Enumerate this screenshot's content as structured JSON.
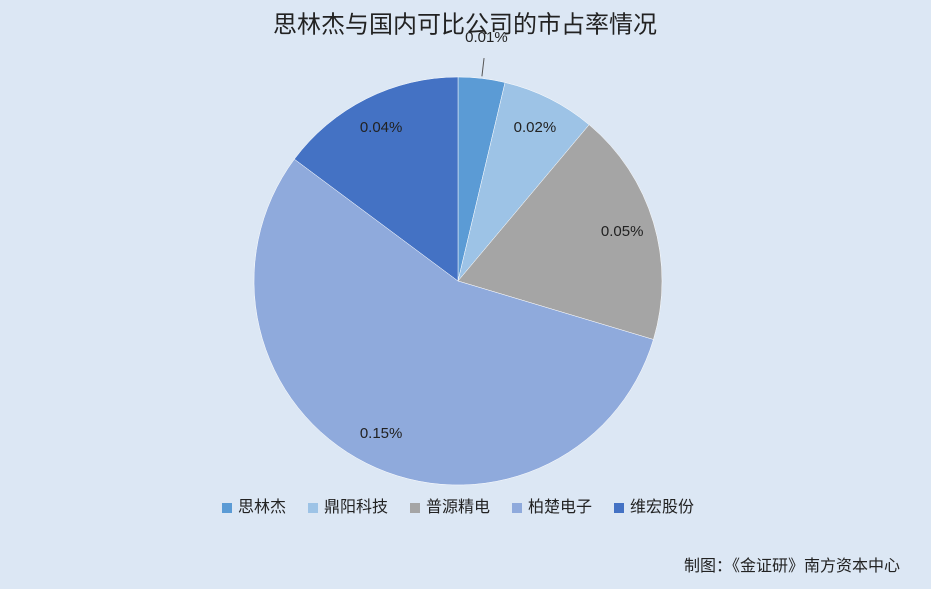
{
  "chart_data": {
    "type": "pie",
    "title": "思林杰与国内可比公司的市占率情况",
    "categories": [
      "思林杰",
      "鼎阳科技",
      "普源精电",
      "柏楚电子",
      "维宏股份"
    ],
    "values": [
      0.01,
      0.02,
      0.05,
      0.15,
      0.04
    ],
    "value_labels": [
      "0.01%",
      "0.02%",
      "0.05%",
      "0.15%",
      "0.04%"
    ],
    "colors": [
      "#5b9bd5",
      "#9dc3e6",
      "#a5a5a5",
      "#8faadc",
      "#4472c4"
    ],
    "legend": "bottom",
    "source": "制图：《金证研》南方资本中心"
  }
}
